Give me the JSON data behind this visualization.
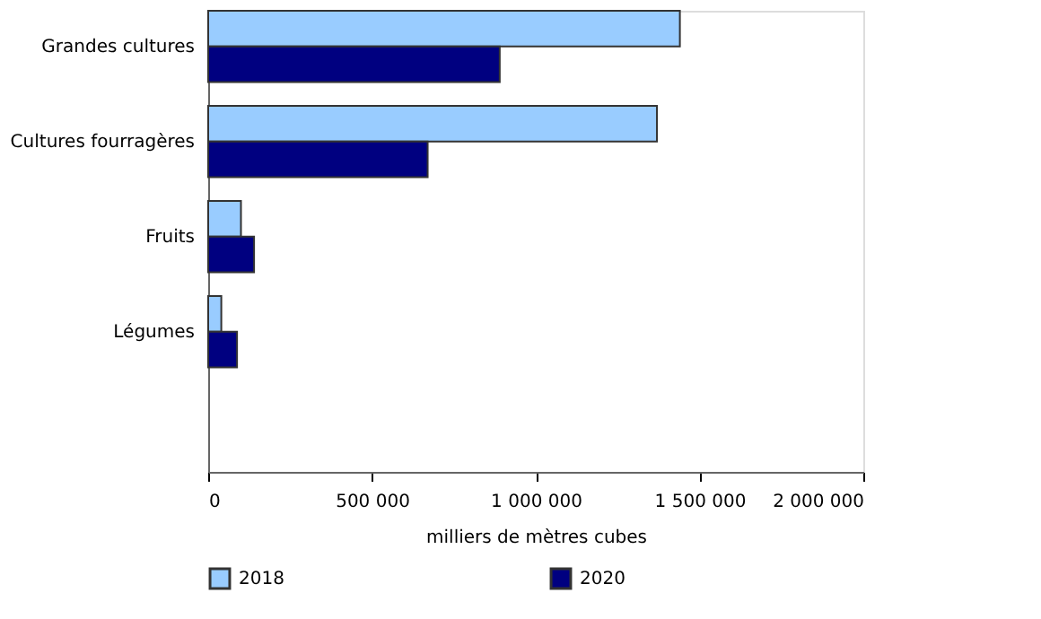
{
  "chart_data": {
    "type": "bar",
    "orientation": "horizontal",
    "xlabel": "milliers de mètres cubes",
    "categories": [
      "Grandes cultures",
      "Cultures fourragères",
      "Fruits",
      "Légumes"
    ],
    "series": [
      {
        "name": "2018",
        "color": "#99ccff",
        "values": [
          1440000,
          1370000,
          100000,
          40000
        ]
      },
      {
        "name": "2020",
        "color": "#000080",
        "values": [
          890000,
          670000,
          140000,
          88000
        ]
      }
    ],
    "xlim": [
      0,
      2000000
    ],
    "xticks": [
      {
        "value": 0,
        "label": "0"
      },
      {
        "value": 500000,
        "label": "500 000"
      },
      {
        "value": 1000000,
        "label": "1 000 000"
      },
      {
        "value": 1500000,
        "label": "1 500 000"
      },
      {
        "value": 2000000,
        "label": "2 000 000"
      }
    ],
    "grid": false,
    "legend": "bottom"
  }
}
